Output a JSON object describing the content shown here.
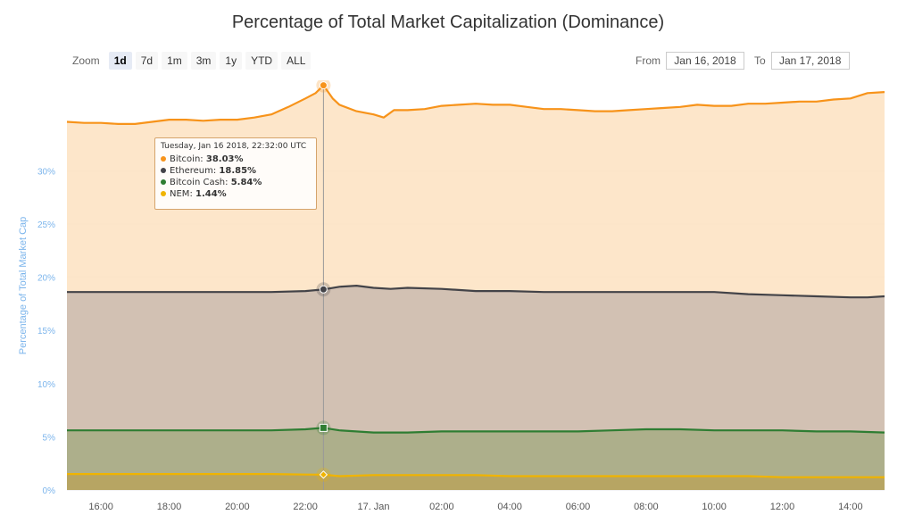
{
  "chart_data": {
    "type": "area",
    "title": "Percentage of Total Market Capitalization (Dominance)",
    "ylabel": "Percentage of Total Market Cap",
    "xlabel": "",
    "ylim": [
      0,
      38.5
    ],
    "yticks": [
      0,
      5,
      10,
      15,
      20,
      25,
      30
    ],
    "ytick_labels": [
      "0%",
      "5%",
      "10%",
      "15%",
      "20%",
      "25%",
      "30%"
    ],
    "x_range_hours": [
      15,
      39
    ],
    "xticks": [
      16,
      18,
      20,
      22,
      24,
      26,
      28,
      30,
      32,
      34,
      36,
      38
    ],
    "xtick_labels": [
      "16:00",
      "18:00",
      "20:00",
      "22:00",
      "17. Jan",
      "02:00",
      "04:00",
      "06:00",
      "08:00",
      "10:00",
      "12:00",
      "14:00"
    ],
    "stacking": "none",
    "grid": true,
    "series": [
      {
        "name": "Bitcoin",
        "color": "#f7931a",
        "fill": "#fde3c4",
        "points": [
          [
            15.0,
            34.6
          ],
          [
            15.5,
            34.5
          ],
          [
            16.0,
            34.5
          ],
          [
            16.5,
            34.4
          ],
          [
            17.0,
            34.4
          ],
          [
            17.5,
            34.6
          ],
          [
            18.0,
            34.8
          ],
          [
            18.5,
            34.8
          ],
          [
            19.0,
            34.7
          ],
          [
            19.5,
            34.8
          ],
          [
            20.0,
            34.8
          ],
          [
            20.5,
            35.0
          ],
          [
            21.0,
            35.3
          ],
          [
            21.5,
            36.0
          ],
          [
            22.0,
            36.8
          ],
          [
            22.3,
            37.3
          ],
          [
            22.53,
            38.03
          ],
          [
            22.8,
            36.8
          ],
          [
            23.0,
            36.2
          ],
          [
            23.5,
            35.6
          ],
          [
            24.0,
            35.3
          ],
          [
            24.3,
            35.0
          ],
          [
            24.6,
            35.7
          ],
          [
            25.0,
            35.7
          ],
          [
            25.5,
            35.8
          ],
          [
            26.0,
            36.1
          ],
          [
            26.5,
            36.2
          ],
          [
            27.0,
            36.3
          ],
          [
            27.5,
            36.2
          ],
          [
            28.0,
            36.2
          ],
          [
            28.5,
            36.0
          ],
          [
            29.0,
            35.8
          ],
          [
            29.5,
            35.8
          ],
          [
            30.0,
            35.7
          ],
          [
            30.5,
            35.6
          ],
          [
            31.0,
            35.6
          ],
          [
            31.5,
            35.7
          ],
          [
            32.0,
            35.8
          ],
          [
            32.5,
            35.9
          ],
          [
            33.0,
            36.0
          ],
          [
            33.5,
            36.2
          ],
          [
            34.0,
            36.1
          ],
          [
            34.5,
            36.1
          ],
          [
            35.0,
            36.3
          ],
          [
            35.5,
            36.3
          ],
          [
            36.0,
            36.4
          ],
          [
            36.5,
            36.5
          ],
          [
            37.0,
            36.5
          ],
          [
            37.5,
            36.7
          ],
          [
            38.0,
            36.8
          ],
          [
            38.5,
            37.3
          ],
          [
            39.0,
            37.4
          ]
        ]
      },
      {
        "name": "Ethereum",
        "color": "#434348",
        "fill": "#cdbdb0",
        "points": [
          [
            15.0,
            18.6
          ],
          [
            16.0,
            18.6
          ],
          [
            17.0,
            18.6
          ],
          [
            18.0,
            18.6
          ],
          [
            19.0,
            18.6
          ],
          [
            20.0,
            18.6
          ],
          [
            21.0,
            18.6
          ],
          [
            22.0,
            18.7
          ],
          [
            22.53,
            18.85
          ],
          [
            23.0,
            19.1
          ],
          [
            23.5,
            19.2
          ],
          [
            24.0,
            19.0
          ],
          [
            24.5,
            18.9
          ],
          [
            25.0,
            19.0
          ],
          [
            26.0,
            18.9
          ],
          [
            27.0,
            18.7
          ],
          [
            28.0,
            18.7
          ],
          [
            29.0,
            18.6
          ],
          [
            30.0,
            18.6
          ],
          [
            31.0,
            18.6
          ],
          [
            32.0,
            18.6
          ],
          [
            33.0,
            18.6
          ],
          [
            34.0,
            18.6
          ],
          [
            35.0,
            18.4
          ],
          [
            36.0,
            18.3
          ],
          [
            37.0,
            18.2
          ],
          [
            38.0,
            18.1
          ],
          [
            38.5,
            18.1
          ],
          [
            39.0,
            18.2
          ]
        ]
      },
      {
        "name": "Bitcoin Cash",
        "color": "#2e7d32",
        "fill": "#a9ad86",
        "points": [
          [
            15.0,
            5.6
          ],
          [
            16.0,
            5.6
          ],
          [
            17.0,
            5.6
          ],
          [
            18.0,
            5.6
          ],
          [
            19.0,
            5.6
          ],
          [
            20.0,
            5.6
          ],
          [
            21.0,
            5.6
          ],
          [
            22.0,
            5.7
          ],
          [
            22.53,
            5.84
          ],
          [
            23.0,
            5.6
          ],
          [
            24.0,
            5.4
          ],
          [
            25.0,
            5.4
          ],
          [
            26.0,
            5.5
          ],
          [
            27.0,
            5.5
          ],
          [
            28.0,
            5.5
          ],
          [
            29.0,
            5.5
          ],
          [
            30.0,
            5.5
          ],
          [
            31.0,
            5.6
          ],
          [
            32.0,
            5.7
          ],
          [
            33.0,
            5.7
          ],
          [
            34.0,
            5.6
          ],
          [
            35.0,
            5.6
          ],
          [
            36.0,
            5.6
          ],
          [
            37.0,
            5.5
          ],
          [
            38.0,
            5.5
          ],
          [
            39.0,
            5.4
          ]
        ]
      },
      {
        "name": "NEM",
        "color": "#f0b400",
        "fill": "#b8a45e",
        "points": [
          [
            15.0,
            1.5
          ],
          [
            16.0,
            1.5
          ],
          [
            17.0,
            1.5
          ],
          [
            18.0,
            1.5
          ],
          [
            19.0,
            1.5
          ],
          [
            20.0,
            1.5
          ],
          [
            21.0,
            1.5
          ],
          [
            22.0,
            1.45
          ],
          [
            22.53,
            1.44
          ],
          [
            23.0,
            1.3
          ],
          [
            24.0,
            1.4
          ],
          [
            25.0,
            1.4
          ],
          [
            26.0,
            1.4
          ],
          [
            27.0,
            1.4
          ],
          [
            28.0,
            1.3
          ],
          [
            29.0,
            1.3
          ],
          [
            30.0,
            1.3
          ],
          [
            31.0,
            1.3
          ],
          [
            32.0,
            1.3
          ],
          [
            33.0,
            1.3
          ],
          [
            34.0,
            1.3
          ],
          [
            35.0,
            1.3
          ],
          [
            36.0,
            1.2
          ],
          [
            37.0,
            1.2
          ],
          [
            38.0,
            1.2
          ],
          [
            39.0,
            1.2
          ]
        ]
      }
    ],
    "hover_x": 22.53,
    "tooltip": {
      "date": "Tuesday, Jan 16 2018, 22:32:00 UTC",
      "rows": [
        {
          "name": "Bitcoin",
          "value": "38.03%",
          "color": "#f7931a"
        },
        {
          "name": "Ethereum",
          "value": "18.85%",
          "color": "#434348"
        },
        {
          "name": "Bitcoin Cash",
          "value": "5.84%",
          "color": "#2e7d32"
        },
        {
          "name": "NEM",
          "value": "1.44%",
          "color": "#f0b400"
        }
      ]
    }
  },
  "controls": {
    "zoom_label": "Zoom",
    "zoom_buttons": [
      "1d",
      "7d",
      "1m",
      "3m",
      "1y",
      "YTD",
      "ALL"
    ],
    "zoom_active": "1d",
    "from_label": "From",
    "from_value": "Jan 16, 2018",
    "to_label": "To",
    "to_value": "Jan 17, 2018"
  }
}
